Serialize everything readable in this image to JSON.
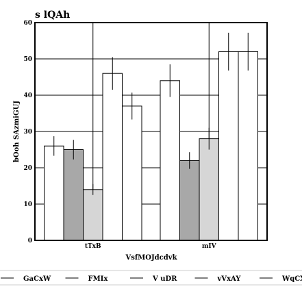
{
  "chart_data": {
    "type": "bar",
    "title": "s lQAh",
    "xlabel": "VsfMOJdcdvk",
    "ylabel": "bOoh SAzmiGUJ",
    "ylim": [
      0,
      60
    ],
    "yticks": [
      0,
      10,
      20,
      30,
      40,
      50,
      60
    ],
    "categories": [
      "tTxB",
      "mIV"
    ],
    "grid": true,
    "legend_position": "bottom",
    "series": [
      {
        "name": "GaCxW",
        "color": "#ffffff",
        "values": [
          26,
          44
        ],
        "errors": [
          2.7,
          4.5
        ]
      },
      {
        "name": "FMIx",
        "color": "#a8a8a8",
        "values": [
          25,
          22
        ],
        "errors": [
          2.7,
          2.3
        ]
      },
      {
        "name": "V uDR",
        "color": "#d6d6d6",
        "values": [
          14,
          28
        ],
        "errors": [
          1.5,
          3.0
        ]
      },
      {
        "name": "vVxAY",
        "color": "#ffffff",
        "values": [
          46,
          52
        ],
        "errors": [
          4.5,
          5.2
        ]
      },
      {
        "name": "WqCX",
        "color": "#ffffff",
        "values": [
          37,
          52
        ],
        "errors": [
          3.7,
          5.2
        ]
      }
    ]
  }
}
